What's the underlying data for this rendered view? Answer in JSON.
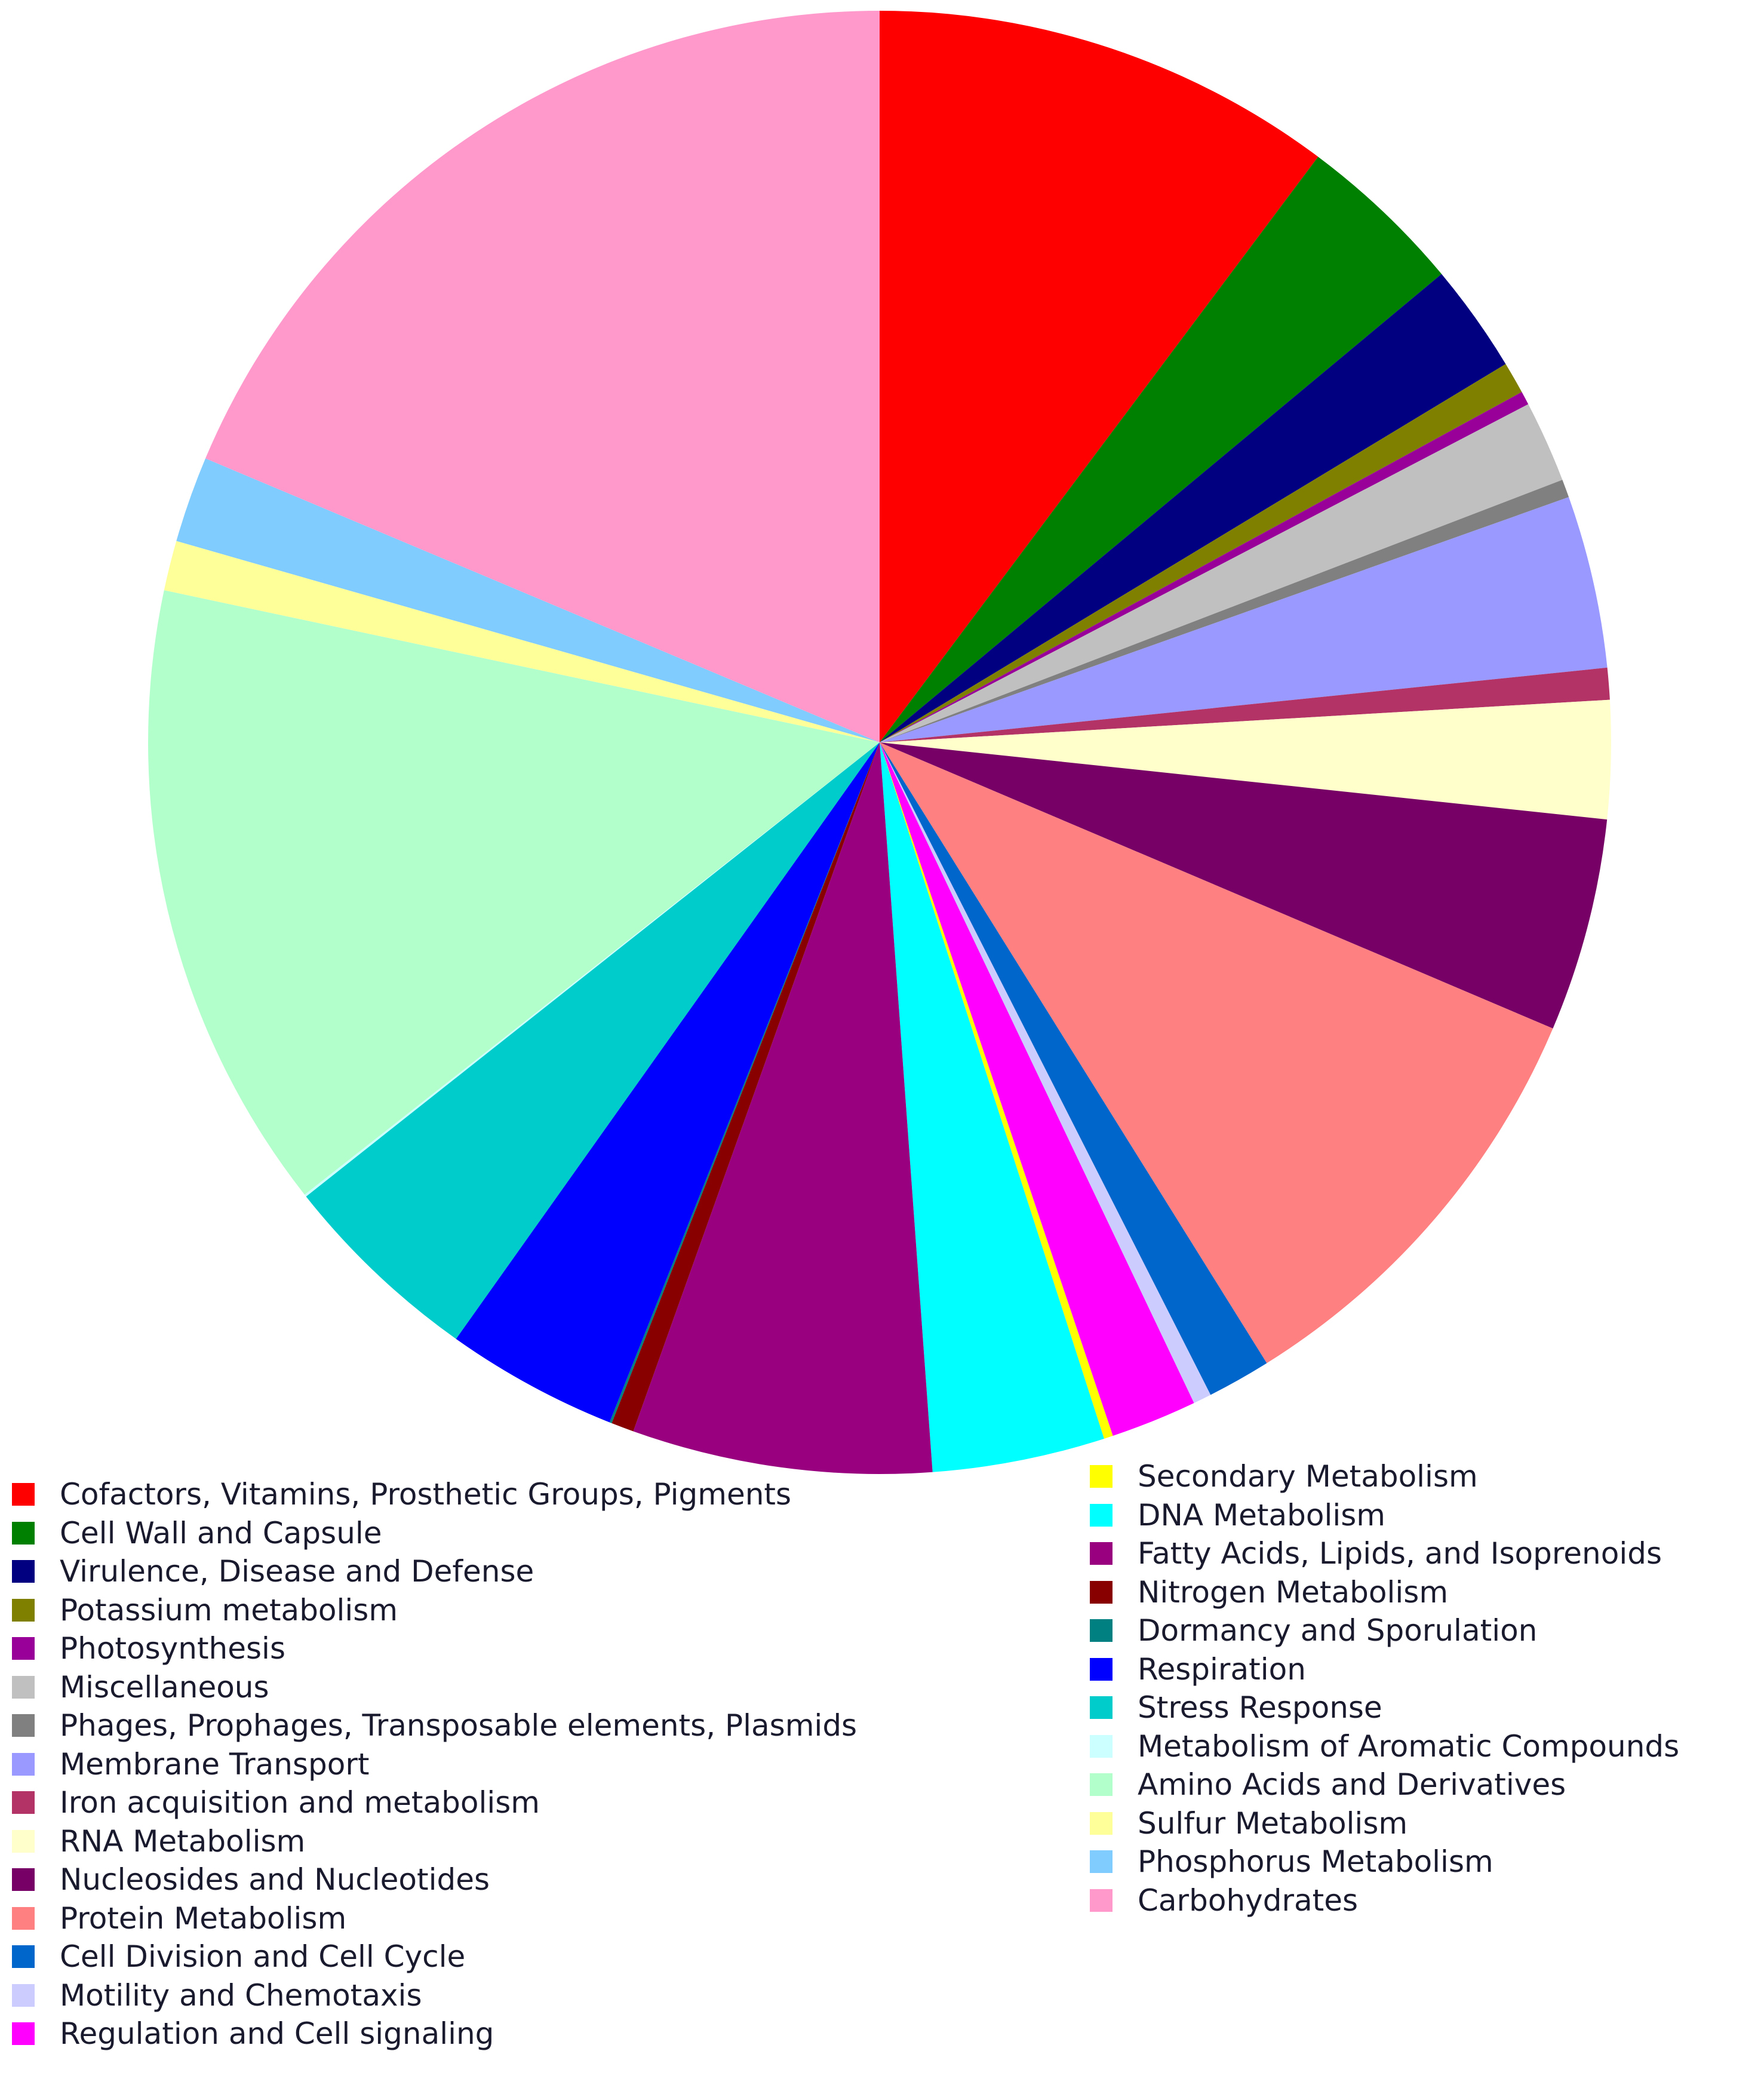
{
  "chart_data": {
    "type": "pie",
    "start_angle_deg": 0,
    "direction": "clockwise",
    "slices": [
      {
        "label": "Cofactors, Vitamins, Prosthetic Groups, Pigments",
        "value": 10.2,
        "color": "#ff0000"
      },
      {
        "label": "Cell Wall and Capsule",
        "value": 3.7,
        "color": "#008000"
      },
      {
        "label": "Virulence, Disease and Defense",
        "value": 2.4,
        "color": "#000080"
      },
      {
        "label": "Potassium metabolism",
        "value": 0.7,
        "color": "#808000"
      },
      {
        "label": "Photosynthesis",
        "value": 0.3,
        "color": "#990099"
      },
      {
        "label": "Miscellaneous",
        "value": 1.8,
        "color": "#c0c0c0"
      },
      {
        "label": "Phages, Prophages, Transposable elements, Plasmids",
        "value": 0.4,
        "color": "#808080"
      },
      {
        "label": "Membrane Transport",
        "value": 3.8,
        "color": "#9999ff"
      },
      {
        "label": "Iron acquisition and metabolism",
        "value": 0.7,
        "color": "#b33366"
      },
      {
        "label": "RNA Metabolism",
        "value": 2.6,
        "color": "#ffffcc"
      },
      {
        "label": "Nucleosides and Nucleotides",
        "value": 4.7,
        "color": "#770066"
      },
      {
        "label": "Protein Metabolism",
        "value": 9.7,
        "color": "#ff8080"
      },
      {
        "label": "Cell Division and Cell Cycle",
        "value": 1.4,
        "color": "#0066cc"
      },
      {
        "label": "Motility and Chemotaxis",
        "value": 0.4,
        "color": "#ccccff"
      },
      {
        "label": "Regulation and Cell signaling",
        "value": 1.9,
        "color": "#ff00ff"
      },
      {
        "label": "Secondary Metabolism",
        "value": 0.2,
        "color": "#ffff00"
      },
      {
        "label": "DNA Metabolism",
        "value": 3.8,
        "color": "#00ffff"
      },
      {
        "label": "Fatty Acids, Lipids, and Isoprenoids",
        "value": 6.6,
        "color": "#990080"
      },
      {
        "label": "Nitrogen Metabolism",
        "value": 0.5,
        "color": "#880000"
      },
      {
        "label": "Dormancy and Sporulation",
        "value": 0.05,
        "color": "#008080"
      },
      {
        "label": "Respiration",
        "value": 3.8,
        "color": "#0000ff"
      },
      {
        "label": "Stress Response",
        "value": 4.5,
        "color": "#00cccc"
      },
      {
        "label": "Metabolism of Aromatic Compounds",
        "value": 0.05,
        "color": "#ccffff"
      },
      {
        "label": "Amino Acids and Derivatives",
        "value": 13.9,
        "color": "#b3ffcc"
      },
      {
        "label": "Sulfur Metabolism",
        "value": 1.1,
        "color": "#ffff99"
      },
      {
        "label": "Phosphorus Metabolism",
        "value": 1.9,
        "color": "#80ccff"
      },
      {
        "label": "Carbohydrates",
        "value": 18.6,
        "color": "#ff99cc"
      }
    ]
  },
  "legend": {
    "left": [
      {
        "label": "Cofactors, Vitamins, Prosthetic Groups, Pigments",
        "color": "#ff0000"
      },
      {
        "label": "Cell Wall and Capsule",
        "color": "#008000"
      },
      {
        "label": "Virulence, Disease and Defense",
        "color": "#000080"
      },
      {
        "label": "Potassium metabolism",
        "color": "#808000"
      },
      {
        "label": "Photosynthesis",
        "color": "#990099"
      },
      {
        "label": "Miscellaneous",
        "color": "#c0c0c0"
      },
      {
        "label": "Phages, Prophages, Transposable elements, Plasmids",
        "color": "#808080"
      },
      {
        "label": "Membrane Transport",
        "color": "#9999ff"
      },
      {
        "label": "Iron acquisition and metabolism",
        "color": "#b33366"
      },
      {
        "label": "RNA Metabolism",
        "color": "#ffffcc"
      },
      {
        "label": "Nucleosides and Nucleotides",
        "color": "#770066"
      },
      {
        "label": "Protein Metabolism",
        "color": "#ff8080"
      },
      {
        "label": "Cell Division and Cell Cycle",
        "color": "#0066cc"
      },
      {
        "label": "Motility and Chemotaxis",
        "color": "#ccccff"
      },
      {
        "label": "Regulation and Cell signaling",
        "color": "#ff00ff"
      }
    ],
    "right": [
      {
        "label": "Secondary Metabolism",
        "color": "#ffff00"
      },
      {
        "label": "DNA Metabolism",
        "color": "#00ffff"
      },
      {
        "label": "Fatty Acids, Lipids, and Isoprenoids",
        "color": "#990080"
      },
      {
        "label": "Nitrogen Metabolism",
        "color": "#880000"
      },
      {
        "label": "Dormancy and Sporulation",
        "color": "#008080"
      },
      {
        "label": "Respiration",
        "color": "#0000ff"
      },
      {
        "label": "Stress Response",
        "color": "#00cccc"
      },
      {
        "label": "Metabolism of Aromatic Compounds",
        "color": "#ccffff"
      },
      {
        "label": "Amino Acids and Derivatives",
        "color": "#b3ffcc"
      },
      {
        "label": "Sulfur Metabolism",
        "color": "#ffff99"
      },
      {
        "label": "Phosphorus Metabolism",
        "color": "#80ccff"
      },
      {
        "label": "Carbohydrates",
        "color": "#ff99cc"
      }
    ]
  }
}
